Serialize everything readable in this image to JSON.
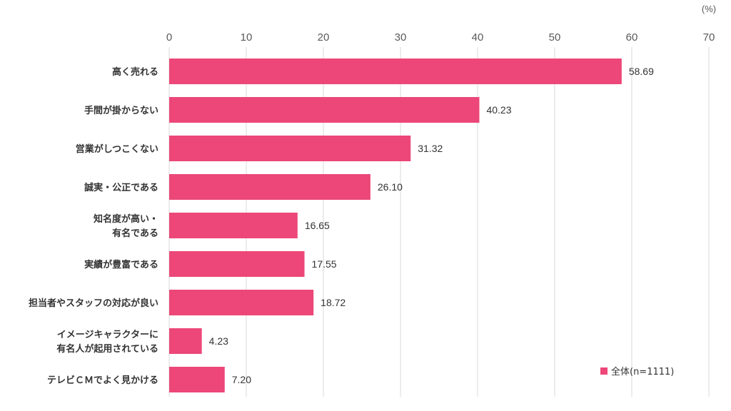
{
  "chart_data": {
    "type": "bar",
    "orientation": "horizontal",
    "unit_label": "(%)",
    "xlim": [
      0,
      70
    ],
    "ticks": [
      0,
      10,
      20,
      30,
      40,
      50,
      60,
      70
    ],
    "grid": true,
    "legend_position": "bottom-right",
    "bar_color": "#ec4778",
    "categories": [
      [
        "高く売れる"
      ],
      [
        "手間が掛からない"
      ],
      [
        "営業がしつこくない"
      ],
      [
        "誠実・公正である"
      ],
      [
        "知名度が高い・",
        "有名である"
      ],
      [
        "実績が豊富である"
      ],
      [
        "担当者やスタッフの対応が良い"
      ],
      [
        "イメージキャラクターに",
        "有名人が起用されている"
      ],
      [
        "テレビＣＭでよく見かける"
      ]
    ],
    "series": [
      {
        "name": "全体(n=1111)",
        "values": [
          58.69,
          40.23,
          31.32,
          26.1,
          16.65,
          17.55,
          18.72,
          4.23,
          7.2
        ],
        "value_labels": [
          "58.69",
          "40.23",
          "31.32",
          "26.10",
          "16.65",
          "17.55",
          "18.72",
          "4.23",
          "7.20"
        ]
      }
    ]
  }
}
